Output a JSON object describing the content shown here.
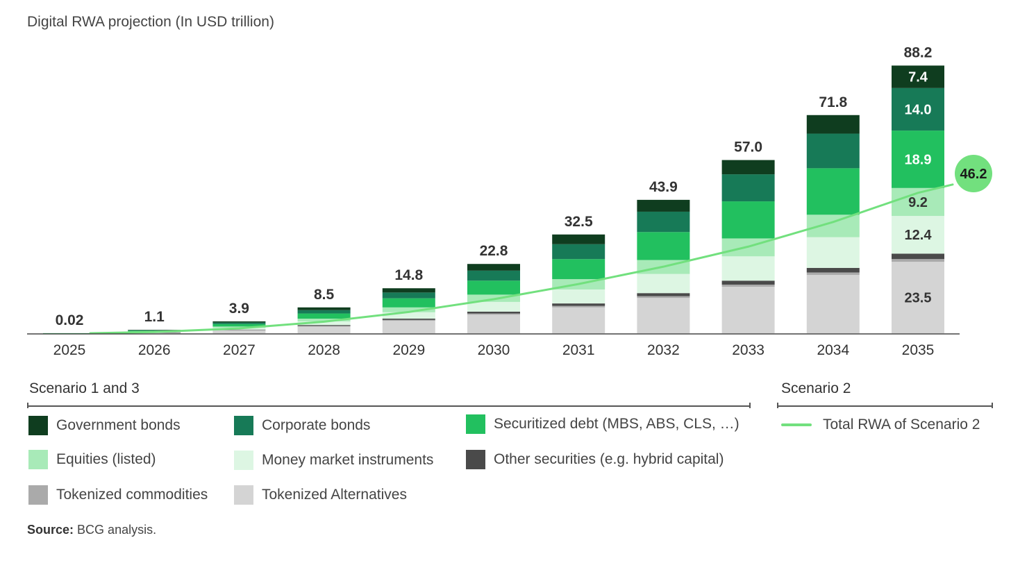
{
  "chart_data": {
    "type": "bar",
    "stacked": true,
    "title": "Digital RWA projection (In USD trillion)",
    "unit": "USD trillion",
    "categories": [
      "2025",
      "2026",
      "2027",
      "2028",
      "2029",
      "2030",
      "2031",
      "2032",
      "2033",
      "2034",
      "2035"
    ],
    "totals": [
      "0.02",
      "1.1",
      "3.9",
      "8.5",
      "14.8",
      "22.8",
      "32.5",
      "43.9",
      "57.0",
      "71.8",
      "88.2"
    ],
    "ylim": [
      0,
      88.2
    ],
    "series": [
      {
        "name": "Tokenized Alternatives",
        "color": "#d4d4d4",
        "values": [
          0.01,
          0.2,
          1.0,
          2.2,
          4.1,
          6.1,
          8.5,
          11.6,
          15.3,
          19.2,
          23.5
        ],
        "labels": {
          "10": "23.5"
        }
      },
      {
        "name": "Tokenized commodities",
        "color": "#aaaaaa",
        "values": [
          0.0,
          0.05,
          0.1,
          0.2,
          0.3,
          0.4,
          0.5,
          0.6,
          0.7,
          0.8,
          0.9
        ]
      },
      {
        "name": "Other securities (e.g. hybrid capital)",
        "color": "#4a4a4a",
        "values": [
          0.0,
          0.05,
          0.1,
          0.3,
          0.4,
          0.6,
          0.8,
          1.0,
          1.3,
          1.5,
          1.8
        ]
      },
      {
        "name": "Money market instruments",
        "color": "#ddf6e3",
        "values": [
          0.0,
          0.2,
          0.6,
          1.2,
          2.1,
          3.2,
          4.6,
          6.3,
          8.0,
          10.1,
          12.4
        ],
        "labels": {
          "10": "12.4"
        }
      },
      {
        "name": "Equities (listed)",
        "color": "#a8eab8",
        "values": [
          0.0,
          0.1,
          0.4,
          0.9,
          1.6,
          2.4,
          3.4,
          4.6,
          5.9,
          7.4,
          9.2
        ],
        "labels": {
          "10": "9.2"
        }
      },
      {
        "name": "Securitized debt (MBS, ABS, CLS, …)",
        "color": "#22c05f",
        "values": [
          0.01,
          0.25,
          0.8,
          1.7,
          3.0,
          4.6,
          6.6,
          9.2,
          12.2,
          15.3,
          18.9
        ],
        "labels": {
          "10": "18.9"
        }
      },
      {
        "name": "Corporate bonds",
        "color": "#177a57",
        "values": [
          0.0,
          0.15,
          0.5,
          1.1,
          1.9,
          3.3,
          4.9,
          6.7,
          8.9,
          11.4,
          14.0
        ],
        "labels": {
          "10": "14.0"
        }
      },
      {
        "name": "Government bonds",
        "color": "#0f3d1f",
        "values": [
          0.0,
          0.1,
          0.4,
          0.9,
          1.4,
          2.2,
          3.2,
          3.9,
          4.7,
          6.1,
          7.4
        ],
        "labels": {
          "10": "7.4"
        }
      }
    ],
    "line": {
      "name": "Total RWA of Scenario 2",
      "color": "#72e07e",
      "values": [
        0,
        0.4,
        1.6,
        3.8,
        7.0,
        11.2,
        16.2,
        21.9,
        28.5,
        36.6,
        46.2
      ],
      "end_label": "46.2"
    },
    "grid": false,
    "legend_position": "bottom"
  },
  "legend": {
    "group1_title": "Scenario 1 and 3",
    "group2_title": "Scenario 2",
    "items": [
      {
        "label": "Government bonds",
        "color": "#0f3d1f"
      },
      {
        "label": "Corporate bonds",
        "color": "#177a57"
      },
      {
        "label": "Securitized debt (MBS, ABS, CLS, …)",
        "color": "#22c05f"
      },
      {
        "label": "Equities (listed)",
        "color": "#a8eab8"
      },
      {
        "label": "Money market instruments",
        "color": "#ddf6e3"
      },
      {
        "label": "Other securities (e.g. hybrid capital)",
        "color": "#4a4a4a"
      },
      {
        "label": "Tokenized commodities",
        "color": "#aaaaaa"
      },
      {
        "label": "Tokenized Alternatives",
        "color": "#d4d4d4"
      }
    ],
    "line_item": {
      "label": "Total RWA of Scenario 2",
      "color": "#72e07e"
    }
  },
  "source": {
    "label": "Source:",
    "text": "BCG analysis."
  }
}
